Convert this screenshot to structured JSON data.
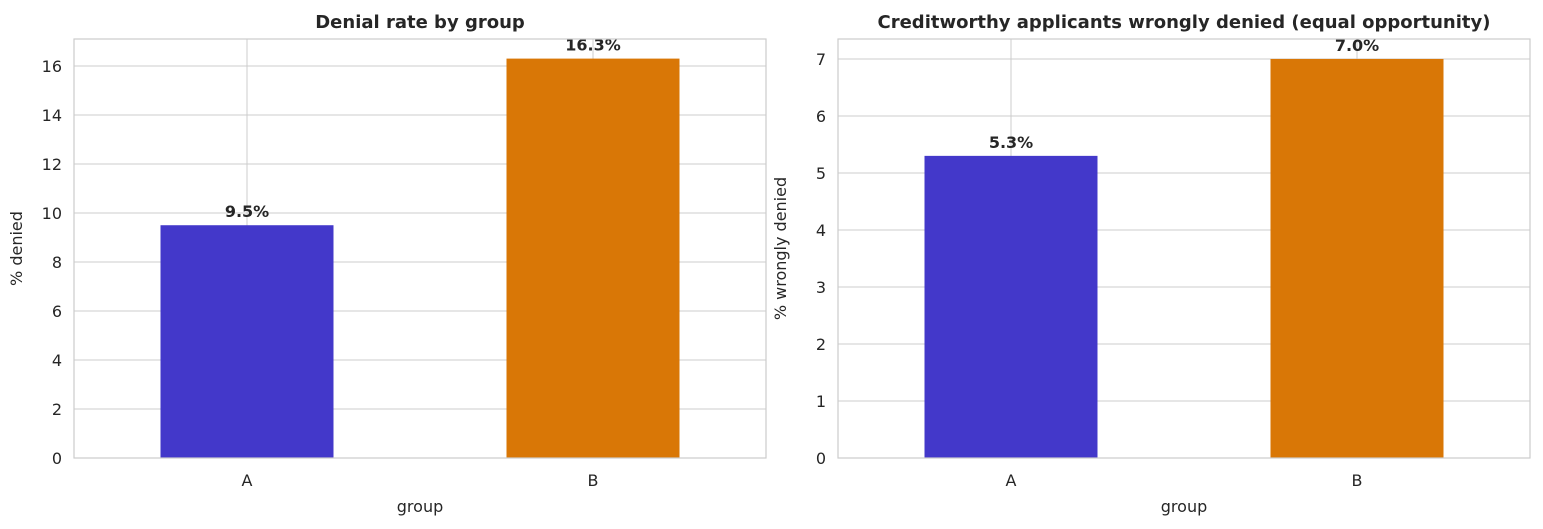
{
  "chart_data": [
    {
      "type": "bar",
      "title": "Denial rate by group",
      "xlabel": "group",
      "ylabel": "% denied",
      "categories": [
        "A",
        "B"
      ],
      "values": [
        9.5,
        16.3
      ],
      "value_labels": [
        "9.5%",
        "16.3%"
      ],
      "colors": [
        "#4338ca",
        "#d97706"
      ],
      "ylim": [
        0,
        17.1
      ],
      "yticks": [
        0,
        2,
        4,
        6,
        8,
        10,
        12,
        14,
        16
      ],
      "grid": true
    },
    {
      "type": "bar",
      "title": "Creditworthy applicants wrongly denied (equal opportunity)",
      "xlabel": "group",
      "ylabel": "% wrongly denied",
      "categories": [
        "A",
        "B"
      ],
      "values": [
        5.3,
        7.0
      ],
      "value_labels": [
        "5.3%",
        "7.0%"
      ],
      "colors": [
        "#4338ca",
        "#d97706"
      ],
      "ylim": [
        0,
        7.35
      ],
      "yticks": [
        0,
        1,
        2,
        3,
        4,
        5,
        6,
        7
      ],
      "grid": true
    }
  ]
}
